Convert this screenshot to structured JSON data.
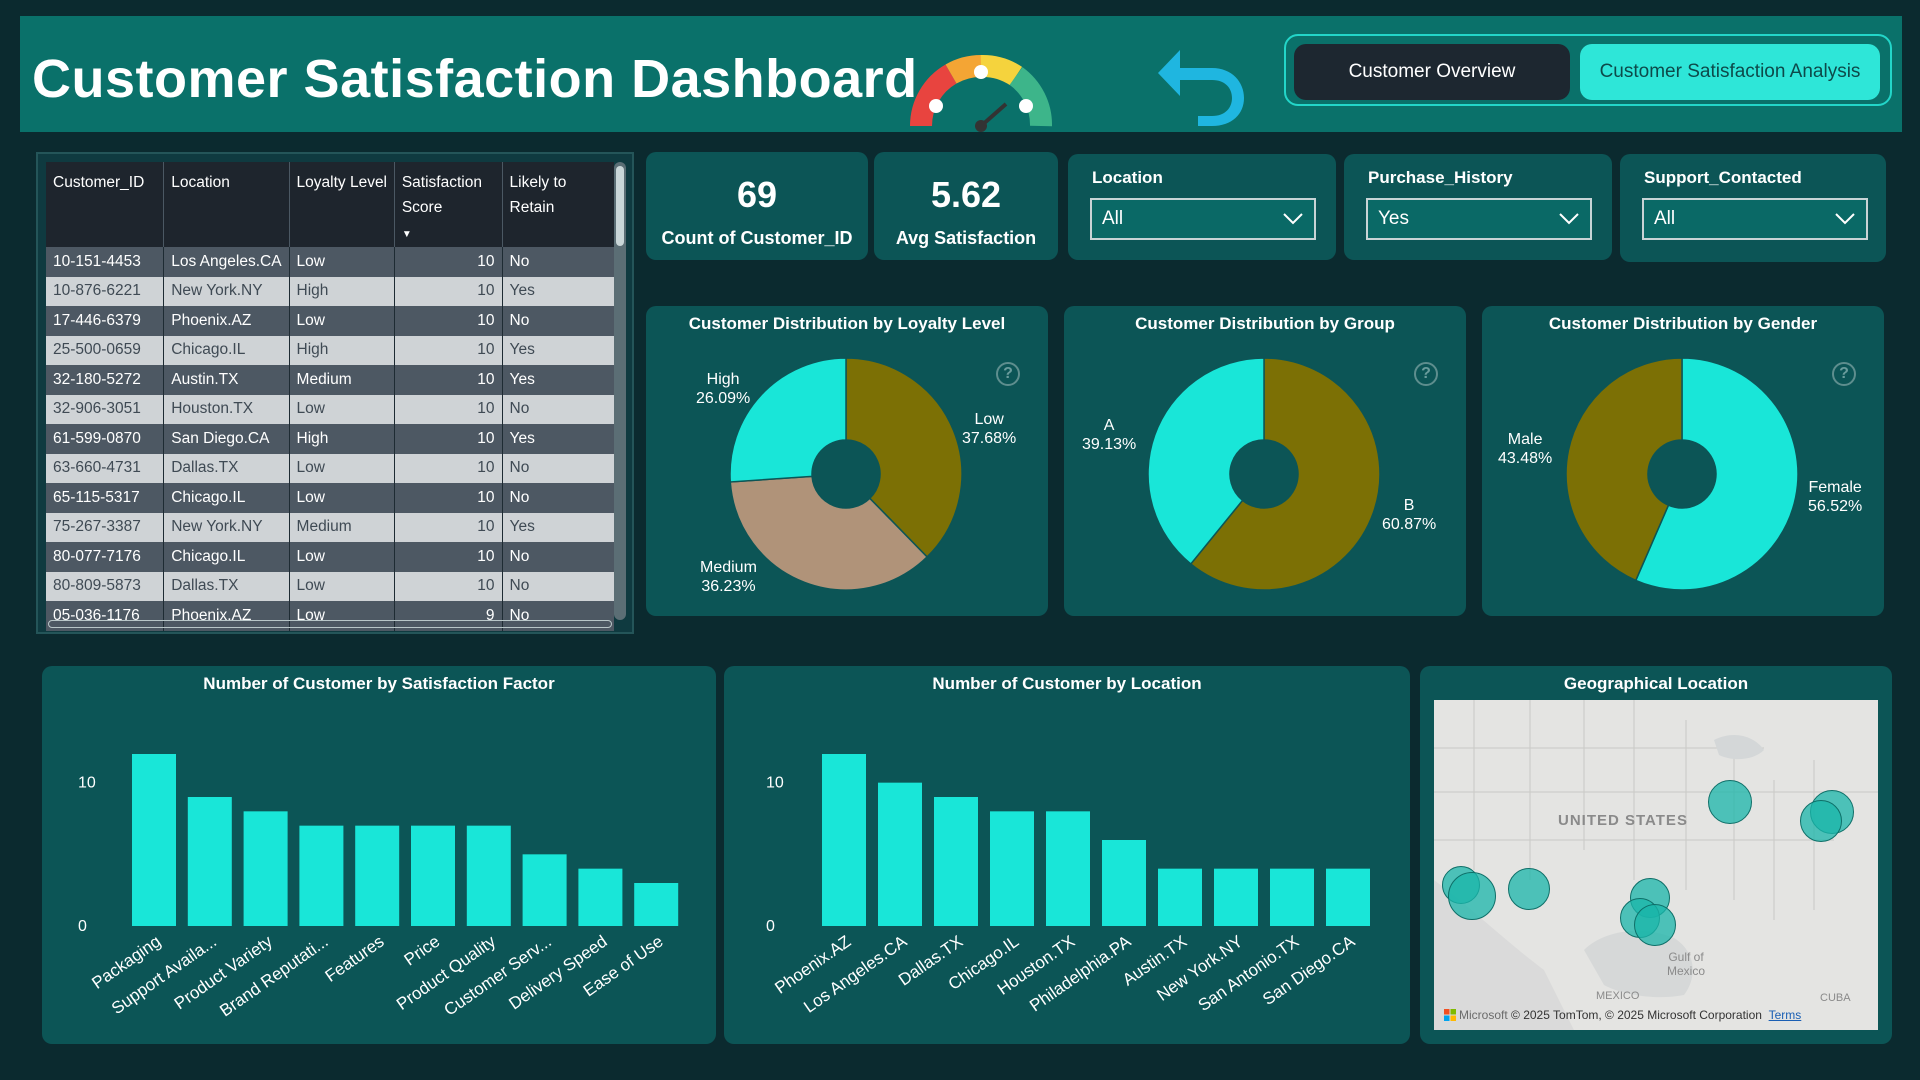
{
  "header": {
    "title": "Customer Satisfaction Dashboard",
    "nav": {
      "overview": "Customer Overview",
      "analysis": "Customer Satisfaction Analysis"
    }
  },
  "table": {
    "columns": [
      "Customer_ID",
      "Location",
      "Loyalty Level",
      "Satisfaction Score",
      "Likely to Retain"
    ],
    "rows": [
      [
        "10-151-4453",
        "Los Angeles.CA",
        "Low",
        "10",
        "No"
      ],
      [
        "10-876-6221",
        "New York.NY",
        "High",
        "10",
        "Yes"
      ],
      [
        "17-446-6379",
        "Phoenix.AZ",
        "Low",
        "10",
        "No"
      ],
      [
        "25-500-0659",
        "Chicago.IL",
        "High",
        "10",
        "Yes"
      ],
      [
        "32-180-5272",
        "Austin.TX",
        "Medium",
        "10",
        "Yes"
      ],
      [
        "32-906-3051",
        "Houston.TX",
        "Low",
        "10",
        "No"
      ],
      [
        "61-599-0870",
        "San Diego.CA",
        "High",
        "10",
        "Yes"
      ],
      [
        "63-660-4731",
        "Dallas.TX",
        "Low",
        "10",
        "No"
      ],
      [
        "65-115-5317",
        "Chicago.IL",
        "Low",
        "10",
        "No"
      ],
      [
        "75-267-3387",
        "New York.NY",
        "Medium",
        "10",
        "Yes"
      ],
      [
        "80-077-7176",
        "Chicago.IL",
        "Low",
        "10",
        "No"
      ],
      [
        "80-809-5873",
        "Dallas.TX",
        "Low",
        "10",
        "No"
      ],
      [
        "05-036-1176",
        "Phoenix.AZ",
        "Low",
        "9",
        "No"
      ]
    ]
  },
  "kpis": {
    "count": {
      "value": "69",
      "label": "Count of Customer_ID"
    },
    "avg": {
      "value": "5.62",
      "label": "Avg Satisfaction"
    }
  },
  "slicers": {
    "location": {
      "label": "Location",
      "value": "All"
    },
    "purchase": {
      "label": "Purchase_History",
      "value": "Yes"
    },
    "support": {
      "label": "Support_Contacted",
      "value": "All"
    }
  },
  "colors": {
    "cyan": "#19e6d8",
    "olive": "#7c7005",
    "tan": "#b09379",
    "panel": "#0c5556"
  },
  "chart_data": [
    {
      "type": "pie",
      "title": "Customer Distribution by Loyalty Level",
      "slices": [
        {
          "name": "Low",
          "value": 37.68,
          "label": "37.68%",
          "color": "#7c7005"
        },
        {
          "name": "Medium",
          "value": 36.23,
          "label": "36.23%",
          "color": "#b09379"
        },
        {
          "name": "High",
          "value": 26.09,
          "label": "26.09%",
          "color": "#19e6d8"
        }
      ]
    },
    {
      "type": "pie",
      "title": "Customer Distribution by Group",
      "slices": [
        {
          "name": "B",
          "value": 60.87,
          "label": "60.87%",
          "color": "#7c7005"
        },
        {
          "name": "A",
          "value": 39.13,
          "label": "39.13%",
          "color": "#19e6d8"
        }
      ]
    },
    {
      "type": "pie",
      "title": "Customer Distribution by Gender",
      "slices": [
        {
          "name": "Female",
          "value": 56.52,
          "label": "56.52%",
          "color": "#19e6d8"
        },
        {
          "name": "Male",
          "value": 43.48,
          "label": "43.48%",
          "color": "#7c7005"
        }
      ]
    },
    {
      "type": "bar",
      "title": "Number of Customer by Satisfaction Factor",
      "categories": [
        "Packaging",
        "Support Availa...",
        "Product Variety",
        "Brand Reputati...",
        "Features",
        "Price",
        "Product Quality",
        "Customer Serv...",
        "Delivery Speed",
        "Ease of Use"
      ],
      "values": [
        12,
        9,
        8,
        7,
        7,
        7,
        7,
        5,
        4,
        3
      ],
      "yticks": [
        "0",
        "10"
      ],
      "ylim": [
        0,
        12
      ]
    },
    {
      "type": "bar",
      "title": "Number of Customer by Location",
      "categories": [
        "Phoenix.AZ",
        "Los Angeles.CA",
        "Dallas.TX",
        "Chicago.IL",
        "Houston.TX",
        "Philadelphia.PA",
        "Austin.TX",
        "New York.NY",
        "San Antonio.TX",
        "San Diego.CA"
      ],
      "values": [
        12,
        10,
        9,
        8,
        8,
        6,
        4,
        4,
        4,
        4
      ],
      "yticks": [
        "0",
        "10"
      ],
      "ylim": [
        0,
        12
      ]
    }
  ],
  "map": {
    "title": "Geographical Location",
    "country_label": "UNITED STATES",
    "gulf_label": "Gulf of Mexico",
    "mexico_label": "MEXICO",
    "cuba_label": "CUBA",
    "attribution_brand": "Microsoft",
    "attribution": "© 2025 TomTom, © 2025 Microsoft Corporation",
    "terms": "Terms"
  }
}
